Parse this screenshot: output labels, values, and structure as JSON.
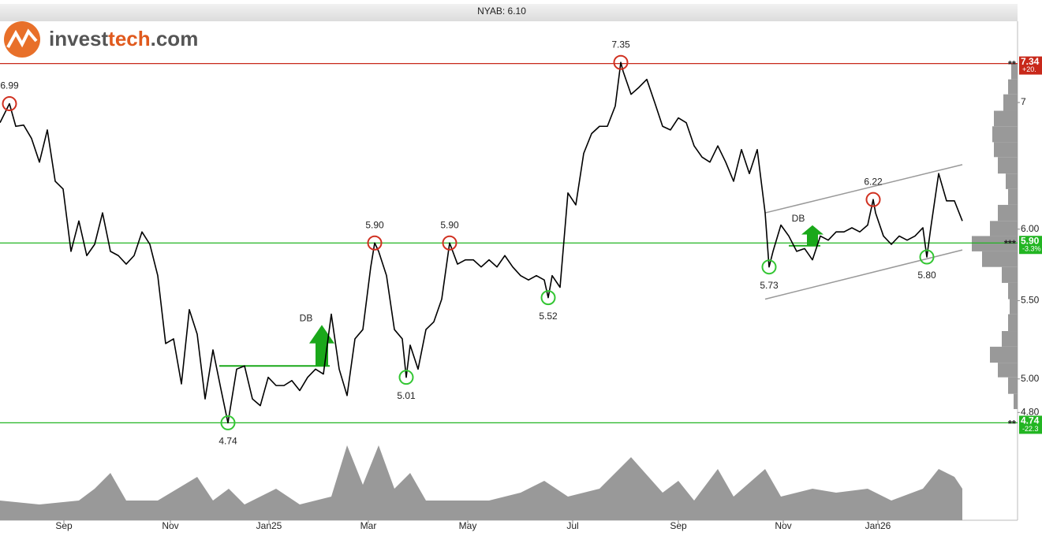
{
  "logo": [
    "invest",
    "tech",
    ".com"
  ],
  "chart_data": {
    "type": "line",
    "title": "NYAB: 6.10",
    "log_scale": true,
    "grid": false,
    "xlim": [
      0,
      129
    ],
    "ylim": [
      4.21,
      7.72
    ],
    "yticks": [
      {
        "value": 4.8,
        "label": "4.80"
      },
      {
        "value": 5,
        "label": "5.00"
      },
      {
        "value": 5.5,
        "label": "5.50"
      },
      {
        "value": 6,
        "label": "6.00"
      },
      7
    ],
    "xticks": [
      {
        "value": 8.1,
        "label": "Sep"
      },
      {
        "value": 21.6,
        "label": "Nov"
      },
      {
        "value": 34.1,
        "label": "Jan25"
      },
      {
        "value": 46.7,
        "label": "Mar"
      },
      {
        "value": 59.3,
        "label": "May"
      },
      {
        "value": 72.6,
        "label": "Jul"
      },
      {
        "value": 86,
        "label": "Sep"
      },
      {
        "value": 99.3,
        "label": "Nov"
      },
      {
        "value": 111.3,
        "label": "Jan26"
      }
    ],
    "series": [
      {
        "color": "#000000",
        "x": [
          0,
          1.2,
          2,
          3,
          4,
          5,
          6,
          7,
          8,
          9,
          10,
          11,
          12,
          13,
          14,
          15,
          16,
          17,
          18,
          19,
          20,
          21,
          22,
          23,
          24,
          25,
          26,
          27,
          28,
          28.9,
          30,
          31,
          32,
          33,
          34,
          35,
          36,
          37,
          38,
          39,
          40,
          41,
          42,
          43,
          44,
          45,
          46,
          47,
          47.5,
          48,
          49,
          50,
          51,
          51.5,
          52,
          53,
          54,
          55,
          56,
          57,
          58,
          59,
          60,
          61,
          62,
          63,
          64,
          65,
          66,
          67,
          68,
          69,
          69.5,
          70,
          71,
          72,
          73,
          74,
          75,
          76,
          77,
          78,
          78.7,
          79,
          80,
          81,
          82,
          83,
          84,
          85,
          86,
          87,
          88,
          89,
          90,
          91,
          92,
          93,
          94,
          95,
          96,
          97,
          97.5,
          98,
          99,
          100,
          101,
          102,
          103,
          104,
          105,
          106,
          107,
          108,
          109,
          110,
          110.7,
          111,
          112,
          113,
          114,
          115,
          116,
          117,
          117.5,
          118,
          119,
          120,
          121,
          122
        ],
        "values": [
          6.83,
          6.99,
          6.8,
          6.81,
          6.7,
          6.51,
          6.77,
          6.36,
          6.3,
          5.84,
          6.06,
          5.81,
          5.89,
          6.12,
          5.84,
          5.81,
          5.75,
          5.81,
          5.98,
          5.89,
          5.67,
          5.22,
          5.25,
          4.97,
          5.44,
          5.28,
          4.88,
          5.18,
          4.94,
          4.74,
          5.06,
          5.08,
          4.88,
          4.84,
          5.01,
          4.96,
          4.96,
          4.99,
          4.93,
          5.01,
          5.06,
          5.03,
          5.41,
          5.06,
          4.9,
          5.25,
          5.31,
          5.73,
          5.9,
          5.84,
          5.67,
          5.31,
          5.25,
          5.01,
          5.21,
          5.06,
          5.31,
          5.36,
          5.51,
          5.9,
          5.75,
          5.78,
          5.78,
          5.73,
          5.78,
          5.73,
          5.81,
          5.73,
          5.67,
          5.64,
          5.67,
          5.64,
          5.52,
          5.67,
          5.59,
          6.27,
          6.18,
          6.58,
          6.74,
          6.8,
          6.8,
          6.97,
          7.35,
          7.27,
          7.07,
          7.13,
          7.2,
          7.0,
          6.8,
          6.77,
          6.87,
          6.83,
          6.64,
          6.55,
          6.51,
          6.64,
          6.51,
          6.36,
          6.61,
          6.42,
          6.61,
          6.12,
          5.73,
          5.84,
          6.03,
          5.95,
          5.84,
          5.86,
          5.78,
          5.95,
          5.92,
          5.98,
          5.98,
          6.01,
          5.98,
          6.03,
          6.22,
          6.12,
          5.95,
          5.89,
          5.95,
          5.92,
          5.95,
          6.01,
          5.8,
          6.01,
          6.42,
          6.21,
          6.21,
          6.06
        ]
      }
    ],
    "tops": {
      "color": "#d03020",
      "x": [
        1.2,
        47.5,
        57,
        78.7,
        110.7
      ],
      "values": [
        6.99,
        5.9,
        5.9,
        7.35,
        6.22
      ],
      "value_labels": [
        "6.99",
        "5.90",
        "5.90",
        "7.35",
        "6.22"
      ]
    },
    "bottoms": {
      "color": "#33c633",
      "x": [
        28.9,
        51.5,
        69.5,
        97.5,
        117.5
      ],
      "values": [
        4.74,
        5.01,
        5.52,
        5.73,
        5.8
      ],
      "value_labels": [
        "4.74",
        "5.01",
        "5.52",
        "5.73",
        "5.80"
      ]
    },
    "levels": [
      {
        "value": 7.34,
        "label": "7.34",
        "stars": "**",
        "change": "+20.",
        "color": "#c8281a"
      },
      {
        "value": 5.9,
        "label": "5.90",
        "stars": "***",
        "change": "-3.3%",
        "color": "#22b522"
      },
      {
        "value": 4.74,
        "label": "4.74",
        "stars": "**",
        "change": "-22.3",
        "color": "#22b522"
      }
    ],
    "channel": {
      "color": "#999999",
      "x": [
        97,
        122
      ],
      "upper": [
        6.12,
        6.49
      ],
      "lower": [
        5.51,
        5.85
      ]
    },
    "patterns": [
      {
        "label": "DB",
        "x": [
          27.8,
          41.8
        ],
        "level": 5.08,
        "color": "#1aa81a"
      },
      {
        "label": "DB",
        "x": [
          100,
          104
        ],
        "level": 5.88,
        "color": "#1aa81a"
      }
    ],
    "volume": {
      "color": "#999999",
      "vlim": [
        0,
        100
      ],
      "x": [
        0,
        5,
        10,
        12,
        14,
        16,
        20,
        25,
        27,
        29,
        31,
        35,
        38,
        40,
        42,
        44,
        46,
        48,
        50,
        52,
        54,
        58,
        62,
        66,
        69,
        72,
        76,
        80,
        84,
        86,
        88,
        91,
        93,
        97,
        99,
        103,
        106,
        110,
        113,
        117,
        119,
        121,
        122
      ],
      "values": [
        25,
        20,
        25,
        40,
        60,
        25,
        25,
        55,
        25,
        40,
        20,
        40,
        20,
        25,
        30,
        95,
        45,
        95,
        40,
        60,
        25,
        25,
        25,
        35,
        50,
        30,
        40,
        80,
        35,
        50,
        25,
        65,
        30,
        65,
        30,
        40,
        35,
        40,
        25,
        40,
        65,
        55,
        40
      ]
    },
    "profile": {
      "color": "#999999",
      "plim": [
        0,
        60
      ],
      "bins": [
        7.34,
        7.2,
        7.07,
        6.93,
        6.8,
        6.67,
        6.55,
        6.42,
        6.3,
        6.18,
        6.06,
        5.95,
        5.84,
        5.73,
        5.62,
        5.51,
        5.41,
        5.3,
        5.2,
        5.1,
        5.01,
        4.91,
        4.82
      ],
      "values": [
        8,
        12,
        18,
        30,
        32,
        30,
        25,
        15,
        12,
        25,
        35,
        58,
        45,
        20,
        12,
        10,
        12,
        20,
        35,
        25,
        12,
        5
      ]
    }
  }
}
